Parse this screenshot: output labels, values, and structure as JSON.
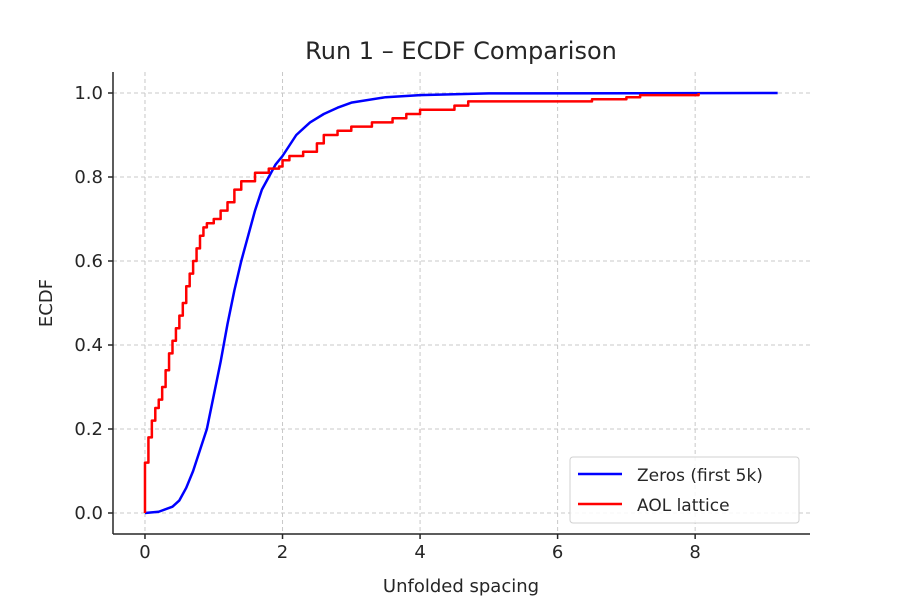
{
  "chart_data": {
    "type": "line",
    "title": "Run 1 – ECDF Comparison",
    "xlabel": "Unfolded spacing",
    "ylabel": "ECDF",
    "xlim": [
      -0.465,
      9.67
    ],
    "ylim": [
      -0.05,
      1.05
    ],
    "xticks": [
      0,
      2,
      4,
      6,
      8
    ],
    "xtick_labels": [
      "0",
      "2",
      "4",
      "6",
      "8"
    ],
    "yticks": [
      0,
      0.2,
      0.4,
      0.6,
      0.8,
      1.0
    ],
    "ytick_labels": [
      "0.0",
      "0.2",
      "0.4",
      "0.6",
      "0.8",
      "1.0"
    ],
    "grid": true,
    "legend_position": "bottom-right",
    "series": [
      {
        "name": "Zeros (first 5k)",
        "color": "#0000ff",
        "step": false,
        "x": [
          0,
          0.2,
          0.4,
          0.5,
          0.6,
          0.7,
          0.8,
          0.9,
          1.0,
          1.1,
          1.2,
          1.3,
          1.4,
          1.5,
          1.6,
          1.7,
          1.8,
          1.9,
          2.0,
          2.1,
          2.2,
          2.4,
          2.6,
          2.8,
          3.0,
          3.5,
          4.0,
          5.0,
          9.2
        ],
        "y": [
          0,
          0.003,
          0.015,
          0.03,
          0.06,
          0.1,
          0.15,
          0.2,
          0.28,
          0.36,
          0.45,
          0.53,
          0.6,
          0.66,
          0.72,
          0.77,
          0.8,
          0.83,
          0.85,
          0.875,
          0.9,
          0.93,
          0.95,
          0.965,
          0.977,
          0.99,
          0.995,
          0.999,
          1.0
        ]
      },
      {
        "name": "AOL lattice",
        "color": "#ff0000",
        "step": true,
        "x": [
          0,
          0,
          0.05,
          0.1,
          0.15,
          0.2,
          0.25,
          0.3,
          0.35,
          0.4,
          0.45,
          0.5,
          0.55,
          0.6,
          0.65,
          0.7,
          0.75,
          0.8,
          0.85,
          0.9,
          1.0,
          1.1,
          1.2,
          1.3,
          1.4,
          1.6,
          1.8,
          1.95,
          2.0,
          2.1,
          2.3,
          2.5,
          2.6,
          2.8,
          3.0,
          3.3,
          3.6,
          3.8,
          4.0,
          4.5,
          4.7,
          6.5,
          7.0,
          7.2,
          8.05
        ],
        "y": [
          0,
          0.12,
          0.18,
          0.22,
          0.25,
          0.27,
          0.3,
          0.34,
          0.38,
          0.41,
          0.44,
          0.47,
          0.5,
          0.54,
          0.57,
          0.6,
          0.63,
          0.66,
          0.68,
          0.69,
          0.7,
          0.72,
          0.74,
          0.77,
          0.79,
          0.81,
          0.82,
          0.825,
          0.84,
          0.85,
          0.86,
          0.88,
          0.9,
          0.91,
          0.92,
          0.93,
          0.94,
          0.95,
          0.96,
          0.97,
          0.98,
          0.985,
          0.99,
          0.995,
          1.0
        ]
      }
    ]
  }
}
